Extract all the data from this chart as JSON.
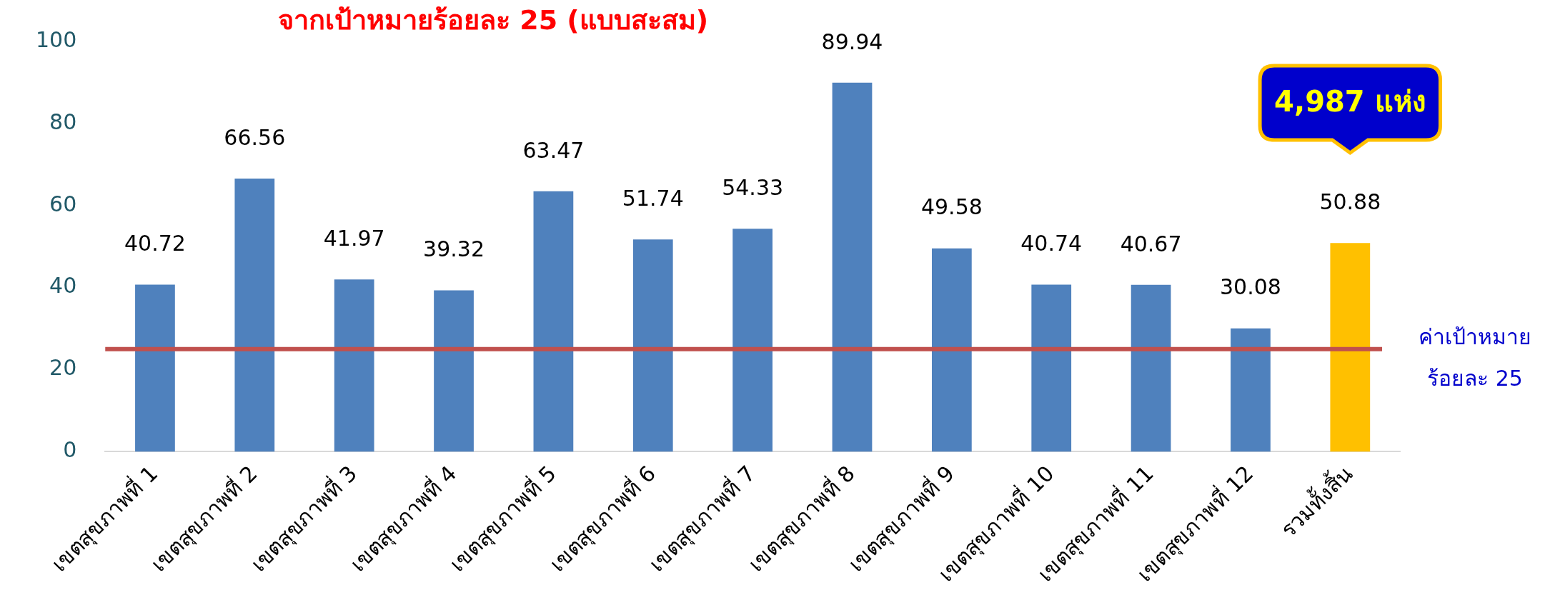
{
  "chart_data": {
    "type": "bar",
    "title": "จากเป้าหมายร้อยละ 25 (แบบสะสม)",
    "categories": [
      "เขตสุขภาพที่ 1",
      "เขตสุขภาพที่ 2",
      "เขตสุขภาพที่ 3",
      "เขตสุขภาพที่ 4",
      "เขตสุขภาพที่ 5",
      "เขตสุขภาพที่ 6",
      "เขตสุขภาพที่ 7",
      "เขตสุขภาพที่ 8",
      "เขตสุขภาพที่ 9",
      "เขตสุขภาพที่ 10",
      "เขตสุขภาพที่ 11",
      "เขตสุขภาพที่ 12",
      "รวมทั้งสิ้น"
    ],
    "values": [
      40.72,
      66.56,
      41.97,
      39.32,
      63.47,
      51.74,
      54.33,
      89.94,
      49.58,
      40.74,
      40.67,
      30.08,
      50.88
    ],
    "colors": [
      "#4f81bd",
      "#4f81bd",
      "#4f81bd",
      "#4f81bd",
      "#4f81bd",
      "#4f81bd",
      "#4f81bd",
      "#4f81bd",
      "#4f81bd",
      "#4f81bd",
      "#4f81bd",
      "#4f81bd",
      "#ffc000"
    ],
    "ylim": [
      0,
      100
    ],
    "yticks": [
      0,
      20,
      40,
      60,
      80,
      100
    ],
    "grid": false,
    "legend": false,
    "data_labels": true,
    "ref_lines": [
      {
        "axis": "y",
        "value": 25,
        "label": "ค่าเป้าหมาย\nร้อยละ 25",
        "color": "#c0504d"
      }
    ],
    "annotations": [
      "4,987 แห่ง"
    ]
  }
}
